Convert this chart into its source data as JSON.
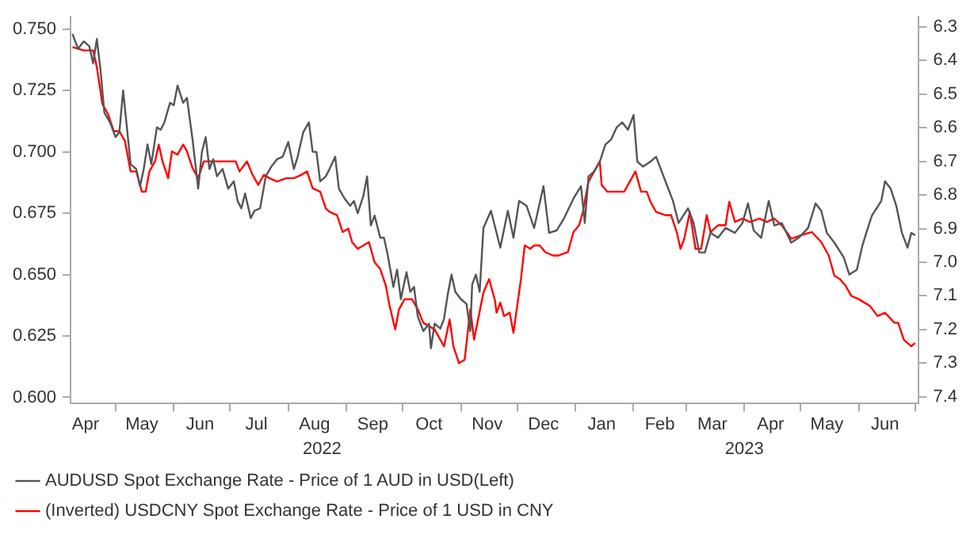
{
  "chart_data": {
    "type": "line",
    "xlim": [
      "2022-04-07",
      "2023-07-03"
    ],
    "xticks": [
      {
        "value": "2022-05-01",
        "label": null
      },
      {
        "value": "2022-06-01",
        "label": null
      },
      {
        "value": "2022-07-01",
        "label": null
      },
      {
        "value": "2022-08-01",
        "label": null
      },
      {
        "value": "2022-09-01",
        "label": null
      },
      {
        "value": "2022-10-01",
        "label": null
      },
      {
        "value": "2022-11-01",
        "label": null
      },
      {
        "value": "2022-12-01",
        "label": null
      },
      {
        "value": "2023-01-01",
        "label": null
      },
      {
        "value": "2023-02-01",
        "label": null
      },
      {
        "value": "2023-03-01",
        "label": null
      },
      {
        "value": "2023-04-01",
        "label": null
      },
      {
        "value": "2023-05-01",
        "label": null
      },
      {
        "value": "2023-06-01",
        "label": null
      },
      {
        "value": "2023-07-01",
        "label": null
      },
      {
        "value": "2022-04-15",
        "label": "Apr"
      },
      {
        "value": "2022-05-15",
        "label": "May"
      },
      {
        "value": "2022-06-15",
        "label": "Jun"
      },
      {
        "value": "2022-07-15",
        "label": "Jul"
      },
      {
        "value": "2022-08-15",
        "label": "Aug"
      },
      {
        "value": "2022-09-15",
        "label": "Sep"
      },
      {
        "value": "2022-10-15",
        "label": "Oct"
      },
      {
        "value": "2022-11-15",
        "label": "Nov"
      },
      {
        "value": "2022-12-15",
        "label": "Dec"
      },
      {
        "value": "2023-01-15",
        "label": "Jan"
      },
      {
        "value": "2023-02-15",
        "label": "Feb"
      },
      {
        "value": "2023-03-15",
        "label": "Mar"
      },
      {
        "value": "2023-04-15",
        "label": "Apr"
      },
      {
        "value": "2023-05-15",
        "label": "May"
      },
      {
        "value": "2023-06-15",
        "label": "Jun"
      }
    ],
    "x2lim": [
      "2022-04-07",
      "2023-07-03"
    ],
    "x2ticks": [
      {
        "value": "2022-08-19",
        "label": "2022"
      },
      {
        "value": "2023-04-01",
        "label": "2023"
      }
    ],
    "ylim": [
      0.5975,
      0.755
    ],
    "yticks": [
      {
        "value": 0.6,
        "label": "0.600"
      },
      {
        "value": 0.625,
        "label": "0.625"
      },
      {
        "value": 0.65,
        "label": "0.650"
      },
      {
        "value": 0.675,
        "label": "0.675"
      },
      {
        "value": 0.7,
        "label": "0.700"
      },
      {
        "value": 0.725,
        "label": "0.725"
      },
      {
        "value": 0.75,
        "label": "0.750"
      }
    ],
    "y2lim": [
      7.42,
      6.27
    ],
    "y2ticks": [
      6.3,
      6.4,
      6.5,
      6.6,
      6.7,
      6.8,
      6.9,
      {
        "value": 7,
        "label": "7.0"
      },
      7.1,
      7.2,
      7.3,
      7.4
    ],
    "legend": "bottom",
    "series": [
      {
        "name": "AUDUSD Spot Exchange Rate - Price of 1 AUD in USD(Left)",
        "color": "#555555",
        "axis": "y",
        "x": [
          "2022-04-08",
          "2022-04-11",
          "2022-04-14",
          "2022-04-17",
          "2022-04-19",
          "2022-04-21",
          "2022-04-23",
          "2022-04-25",
          "2022-04-28",
          "2022-05-01",
          "2022-05-03",
          "2022-05-05",
          "2022-05-07",
          "2022-05-09",
          "2022-05-12",
          "2022-05-14",
          "2022-05-16",
          "2022-05-18",
          "2022-05-20",
          "2022-05-23",
          "2022-05-25",
          "2022-05-27",
          "2022-05-30",
          "2022-06-01",
          "2022-06-03",
          "2022-06-06",
          "2022-06-08",
          "2022-06-11",
          "2022-06-14",
          "2022-06-16",
          "2022-06-18",
          "2022-06-20",
          "2022-06-22",
          "2022-06-24",
          "2022-06-27",
          "2022-06-30",
          "2022-07-03",
          "2022-07-05",
          "2022-07-07",
          "2022-07-09",
          "2022-07-12",
          "2022-07-14",
          "2022-07-17",
          "2022-07-20",
          "2022-07-23",
          "2022-07-26",
          "2022-07-29",
          "2022-08-01",
          "2022-08-04",
          "2022-08-06",
          "2022-08-09",
          "2022-08-12",
          "2022-08-14",
          "2022-08-16",
          "2022-08-18",
          "2022-08-21",
          "2022-08-23",
          "2022-08-26",
          "2022-08-28",
          "2022-08-31",
          "2022-09-03",
          "2022-09-05",
          "2022-09-07",
          "2022-09-10",
          "2022-09-12",
          "2022-09-14",
          "2022-09-16",
          "2022-09-19",
          "2022-09-21",
          "2022-09-23",
          "2022-09-26",
          "2022-09-28",
          "2022-09-30",
          "2022-10-03",
          "2022-10-05",
          "2022-10-07",
          "2022-10-09",
          "2022-10-12",
          "2022-10-15",
          "2022-10-16",
          "2022-10-18",
          "2022-10-21",
          "2022-10-23",
          "2022-10-25",
          "2022-10-27",
          "2022-10-29",
          "2022-11-01",
          "2022-11-04",
          "2022-11-06",
          "2022-11-07",
          "2022-11-09",
          "2022-11-11",
          "2022-11-13",
          "2022-11-17",
          "2022-11-22",
          "2022-11-26",
          "2022-11-29",
          "2022-12-02",
          "2022-12-06",
          "2022-12-10",
          "2022-12-15",
          "2022-12-18",
          "2022-12-22",
          "2022-12-26",
          "2022-12-31",
          "2023-01-04",
          "2023-01-06",
          "2023-01-08",
          "2023-01-11",
          "2023-01-14",
          "2023-01-17",
          "2023-01-20",
          "2023-01-23",
          "2023-01-26",
          "2023-01-29",
          "2023-02-01",
          "2023-02-03",
          "2023-02-06",
          "2023-02-10",
          "2023-02-13",
          "2023-02-16",
          "2023-02-19",
          "2023-02-22",
          "2023-02-25",
          "2023-03-02",
          "2023-03-05",
          "2023-03-08",
          "2023-03-11",
          "2023-03-14",
          "2023-03-18",
          "2023-03-22",
          "2023-03-27",
          "2023-03-31",
          "2023-04-03",
          "2023-04-06",
          "2023-04-10",
          "2023-04-14",
          "2023-04-17",
          "2023-04-21",
          "2023-04-26",
          "2023-04-30",
          "2023-05-05",
          "2023-05-09",
          "2023-05-12",
          "2023-05-15",
          "2023-05-19",
          "2023-05-24",
          "2023-05-27",
          "2023-05-31",
          "2023-06-03",
          "2023-06-05",
          "2023-06-08",
          "2023-06-13",
          "2023-06-15",
          "2023-06-18",
          "2023-06-21",
          "2023-06-24",
          "2023-06-27",
          "2023-06-29",
          "2023-07-01"
        ],
        "values": [
          0.748,
          0.742,
          0.745,
          0.743,
          0.736,
          0.746,
          0.733,
          0.716,
          0.712,
          0.706,
          0.708,
          0.725,
          0.71,
          0.695,
          0.693,
          0.686,
          0.693,
          0.703,
          0.695,
          0.71,
          0.709,
          0.712,
          0.72,
          0.719,
          0.727,
          0.72,
          0.722,
          0.705,
          0.685,
          0.7,
          0.706,
          0.693,
          0.697,
          0.69,
          0.693,
          0.685,
          0.688,
          0.68,
          0.677,
          0.683,
          0.673,
          0.676,
          0.677,
          0.69,
          0.694,
          0.697,
          0.698,
          0.704,
          0.693,
          0.698,
          0.708,
          0.712,
          0.7,
          0.7,
          0.688,
          0.69,
          0.693,
          0.698,
          0.685,
          0.681,
          0.678,
          0.68,
          0.675,
          0.682,
          0.69,
          0.67,
          0.674,
          0.665,
          0.665,
          0.658,
          0.645,
          0.652,
          0.64,
          0.651,
          0.643,
          0.645,
          0.633,
          0.627,
          0.63,
          0.62,
          0.63,
          0.628,
          0.632,
          0.642,
          0.65,
          0.643,
          0.64,
          0.638,
          0.627,
          0.646,
          0.65,
          0.643,
          0.669,
          0.676,
          0.661,
          0.676,
          0.665,
          0.68,
          0.678,
          0.669,
          0.686,
          0.667,
          0.668,
          0.673,
          0.681,
          0.686,
          0.671,
          0.69,
          0.692,
          0.696,
          0.703,
          0.705,
          0.71,
          0.712,
          0.709,
          0.715,
          0.696,
          0.694,
          0.696,
          0.698,
          0.692,
          0.686,
          0.68,
          0.671,
          0.677,
          0.671,
          0.659,
          0.659,
          0.667,
          0.665,
          0.669,
          0.667,
          0.671,
          0.679,
          0.668,
          0.665,
          0.68,
          0.67,
          0.671,
          0.663,
          0.665,
          0.669,
          0.679,
          0.676,
          0.667,
          0.663,
          0.657,
          0.65,
          0.652,
          0.662,
          0.667,
          0.674,
          0.68,
          0.688,
          0.685,
          0.678,
          0.667,
          0.661,
          0.667,
          0.666
        ]
      },
      {
        "name": "(Inverted) USDCNY Spot Exchange Rate - Price of 1 USD in CNY",
        "color": "#ff0000",
        "axis": "y2",
        "x": [
          "2022-04-08",
          "2022-04-14",
          "2022-04-19",
          "2022-04-21",
          "2022-04-24",
          "2022-04-27",
          "2022-04-30",
          "2022-05-03",
          "2022-05-06",
          "2022-05-09",
          "2022-05-12",
          "2022-05-15",
          "2022-05-17",
          "2022-05-19",
          "2022-05-22",
          "2022-05-24",
          "2022-05-26",
          "2022-05-29",
          "2022-05-31",
          "2022-06-03",
          "2022-06-06",
          "2022-06-08",
          "2022-06-11",
          "2022-06-14",
          "2022-06-17",
          "2022-06-20",
          "2022-06-24",
          "2022-06-30",
          "2022-07-04",
          "2022-07-06",
          "2022-07-10",
          "2022-07-13",
          "2022-07-16",
          "2022-07-19",
          "2022-07-22",
          "2022-07-26",
          "2022-07-31",
          "2022-08-04",
          "2022-08-08",
          "2022-08-11",
          "2022-08-14",
          "2022-08-18",
          "2022-08-21",
          "2022-08-23",
          "2022-08-27",
          "2022-08-30",
          "2022-09-02",
          "2022-09-04",
          "2022-09-07",
          "2022-09-10",
          "2022-09-13",
          "2022-09-16",
          "2022-09-19",
          "2022-09-22",
          "2022-09-24",
          "2022-09-27",
          "2022-09-29",
          "2022-10-02",
          "2022-10-06",
          "2022-10-09",
          "2022-10-12",
          "2022-10-15",
          "2022-10-18",
          "2022-10-21",
          "2022-10-23",
          "2022-10-26",
          "2022-10-28",
          "2022-10-31",
          "2022-11-03",
          "2022-11-06",
          "2022-11-08",
          "2022-11-13",
          "2022-11-16",
          "2022-11-19",
          "2022-11-20",
          "2022-11-22",
          "2022-11-24",
          "2022-11-27",
          "2022-11-29",
          "2022-12-02",
          "2022-12-03",
          "2022-12-05",
          "2022-12-08",
          "2022-12-10",
          "2022-12-13",
          "2022-12-16",
          "2022-12-20",
          "2022-12-23",
          "2022-12-28",
          "2022-12-31",
          "2023-01-03",
          "2023-01-05",
          "2023-01-08",
          "2023-01-11",
          "2023-01-14",
          "2023-01-15",
          "2023-01-18",
          "2023-01-23",
          "2023-01-27",
          "2023-01-30",
          "2023-02-02",
          "2023-02-05",
          "2023-02-08",
          "2023-02-10",
          "2023-02-13",
          "2023-02-18",
          "2023-02-21",
          "2023-02-24",
          "2023-02-26",
          "2023-02-28",
          "2023-03-03",
          "2023-03-06",
          "2023-03-09",
          "2023-03-12",
          "2023-03-14",
          "2023-03-18",
          "2023-03-22",
          "2023-03-24",
          "2023-03-27",
          "2023-03-31",
          "2023-04-04",
          "2023-04-09",
          "2023-04-13",
          "2023-04-17",
          "2023-04-21",
          "2023-04-26",
          "2023-05-01",
          "2023-05-07",
          "2023-05-12",
          "2023-05-16",
          "2023-05-19",
          "2023-05-22",
          "2023-05-25",
          "2023-05-28",
          "2023-06-01",
          "2023-06-04",
          "2023-06-07",
          "2023-06-11",
          "2023-06-15",
          "2023-06-20",
          "2023-06-22",
          "2023-06-25",
          "2023-06-27",
          "2023-06-29",
          "2023-07-01"
        ],
        "values": [
          6.36,
          6.37,
          6.37,
          6.42,
          6.53,
          6.56,
          6.61,
          6.61,
          6.64,
          6.73,
          6.73,
          6.79,
          6.79,
          6.73,
          6.7,
          6.65,
          6.7,
          6.75,
          6.67,
          6.68,
          6.65,
          6.67,
          6.72,
          6.75,
          6.7,
          6.7,
          6.7,
          6.7,
          6.7,
          6.73,
          6.7,
          6.74,
          6.77,
          6.74,
          6.75,
          6.76,
          6.75,
          6.75,
          6.74,
          6.73,
          6.78,
          6.79,
          6.84,
          6.85,
          6.86,
          6.91,
          6.9,
          6.94,
          6.96,
          6.95,
          6.94,
          7.0,
          7.02,
          7.07,
          7.13,
          7.2,
          7.14,
          7.11,
          7.11,
          7.14,
          7.18,
          7.19,
          7.2,
          7.23,
          7.25,
          7.17,
          7.25,
          7.3,
          7.29,
          7.14,
          7.23,
          7.09,
          7.05,
          7.11,
          7.15,
          7.12,
          7.16,
          7.15,
          7.21,
          7.09,
          7.05,
          6.95,
          6.96,
          6.95,
          6.95,
          6.97,
          6.98,
          6.98,
          6.97,
          6.91,
          6.89,
          6.85,
          6.76,
          6.73,
          6.7,
          6.77,
          6.79,
          6.79,
          6.79,
          6.76,
          6.73,
          6.79,
          6.79,
          6.82,
          6.85,
          6.86,
          6.86,
          6.91,
          6.96,
          6.93,
          6.85,
          6.96,
          6.96,
          6.86,
          6.91,
          6.89,
          6.89,
          6.82,
          6.88,
          6.87,
          6.88,
          6.87,
          6.88,
          6.87,
          6.89,
          6.93,
          6.92,
          6.91,
          6.94,
          6.98,
          7.04,
          7.05,
          7.07,
          7.1,
          7.11,
          7.12,
          7.13,
          7.16,
          7.15,
          7.18,
          7.18,
          7.23,
          7.24,
          7.25,
          7.24
        ]
      }
    ]
  }
}
